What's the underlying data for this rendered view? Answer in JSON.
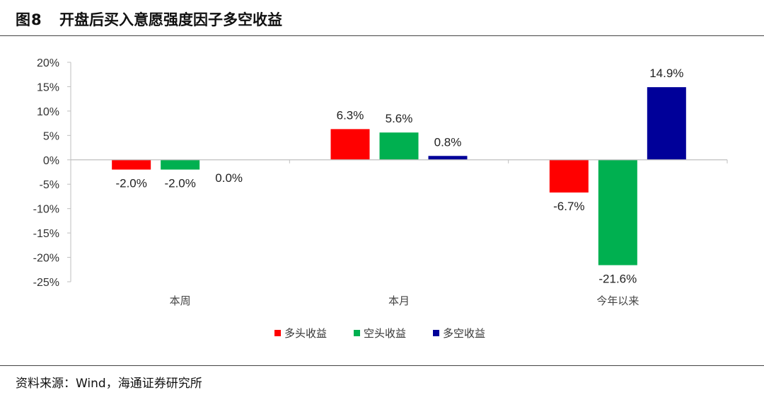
{
  "header": {
    "figure_label": "图8",
    "title": "开盘后买入意愿强度因子多空收益"
  },
  "footer": {
    "source": "资料来源：Wind，海通证券研究所"
  },
  "chart_data": {
    "type": "bar",
    "title": "开盘后买入意愿强度因子多空收益",
    "xlabel": "",
    "ylabel": "",
    "categories": [
      "本周",
      "本月",
      "今年以来"
    ],
    "series": [
      {
        "name": "多头收益",
        "color": "#ff0000",
        "values": [
          -2.0,
          6.3,
          -6.7
        ],
        "labels": [
          "-2.0%",
          "6.3%",
          "-6.7%"
        ]
      },
      {
        "name": "空头收益",
        "color": "#00b050",
        "values": [
          -2.0,
          5.6,
          -21.6
        ],
        "labels": [
          "-2.0%",
          "5.6%",
          "-21.6%"
        ]
      },
      {
        "name": "多空收益",
        "color": "#000099",
        "values": [
          0.0,
          0.8,
          14.9
        ],
        "labels": [
          "0.0%",
          "0.8%",
          "14.9%"
        ]
      }
    ],
    "ylim": [
      -25,
      20
    ],
    "yticks": [
      20,
      15,
      10,
      5,
      0,
      -5,
      -10,
      -15,
      -20,
      -25
    ],
    "ytick_labels": [
      "20%",
      "15%",
      "10%",
      "5%",
      "0%",
      "-5%",
      "-10%",
      "-15%",
      "-20%",
      "-25%"
    ],
    "grid": false,
    "legend_position": "bottom"
  }
}
